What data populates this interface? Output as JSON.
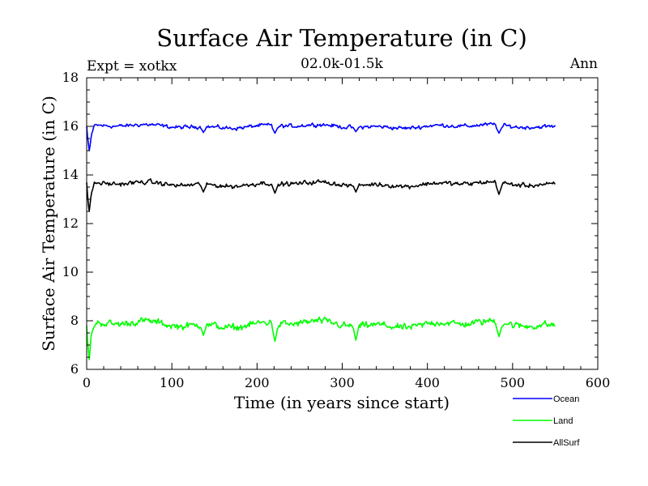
{
  "chart_data": {
    "type": "line",
    "title": "Surface Air Temperature (in C)",
    "subtitle_left": "Expt = xotkx",
    "subtitle_center": "02.0k-01.5k",
    "subtitle_right": "Ann",
    "xlabel": "Time (in years since start)",
    "ylabel": "Surface Air Temperature (in C)",
    "xlim": [
      0,
      600
    ],
    "ylim": [
      6,
      18
    ],
    "xticks": [
      0,
      100,
      200,
      300,
      400,
      500,
      600
    ],
    "yticks": [
      6,
      8,
      10,
      12,
      14,
      16,
      18
    ],
    "grid": false,
    "legend_position": "bottom-right",
    "n_years": 550,
    "series": [
      {
        "name": "Ocean",
        "color": "#0000ff",
        "mean": 16.0,
        "noise": 0.12,
        "initial": [
          16.0,
          15.6,
          15.3,
          15.0,
          15.2,
          15.5,
          15.7,
          15.8
        ],
        "dips": [
          [
            137,
            15.75
          ],
          [
            221,
            15.72
          ],
          [
            316,
            15.78
          ],
          [
            484,
            15.72
          ]
        ]
      },
      {
        "name": "Land",
        "color": "#00ff00",
        "mean": 7.85,
        "noise": 0.22,
        "initial": [
          7.8,
          7.2,
          6.8,
          6.4,
          6.8,
          7.3,
          7.5,
          7.6
        ],
        "dips": [
          [
            137,
            7.4
          ],
          [
            221,
            7.15
          ],
          [
            316,
            7.2
          ],
          [
            484,
            7.35
          ]
        ]
      },
      {
        "name": "AllSurf",
        "color": "#000000",
        "mean": 13.62,
        "noise": 0.14,
        "initial": [
          13.7,
          13.2,
          12.8,
          12.5,
          12.8,
          13.1,
          13.3,
          13.4
        ],
        "dips": [
          [
            137,
            13.3
          ],
          [
            221,
            13.25
          ],
          [
            316,
            13.3
          ],
          [
            484,
            13.2
          ]
        ]
      }
    ]
  }
}
